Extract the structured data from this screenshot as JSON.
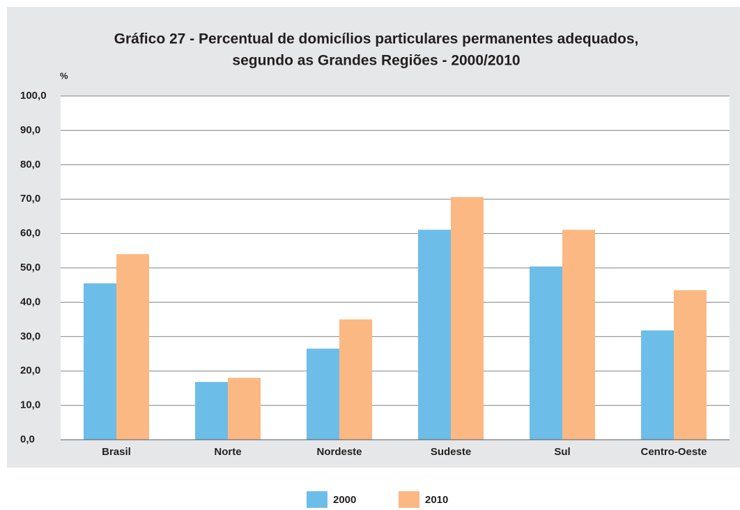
{
  "chart_data": {
    "type": "bar",
    "title": [
      "Gráfico 27 - Percentual de domicílios particulares permanentes adequados,",
      "segundo as Grandes Regiões - 2000/2010"
    ],
    "y_label": "%",
    "categories": [
      "Brasil",
      "Norte",
      "Nordeste",
      "Sudeste",
      "Sul",
      "Centro-Oeste"
    ],
    "series": [
      {
        "name": "2000",
        "color": "#6dbde9",
        "values": [
          45.5,
          16.8,
          26.5,
          61.1,
          50.4,
          31.8
        ]
      },
      {
        "name": "2010",
        "color": "#fbb882",
        "values": [
          54.0,
          18.0,
          35.0,
          70.6,
          61.1,
          43.5
        ]
      }
    ],
    "ylim": [
      0,
      100
    ],
    "yticks": [
      {
        "value": 0,
        "label": "0,0"
      },
      {
        "value": 10,
        "label": "10,0"
      },
      {
        "value": 20,
        "label": "20,0"
      },
      {
        "value": 30,
        "label": "30,0"
      },
      {
        "value": 40,
        "label": "40,0"
      },
      {
        "value": 50,
        "label": "50,0"
      },
      {
        "value": 60,
        "label": "60,0"
      },
      {
        "value": 70,
        "label": "70,0"
      },
      {
        "value": 80,
        "label": "80,0"
      },
      {
        "value": 90,
        "label": "90,0"
      },
      {
        "value": 100,
        "label": "100,0"
      }
    ],
    "grid": true,
    "legend": "bottom"
  }
}
